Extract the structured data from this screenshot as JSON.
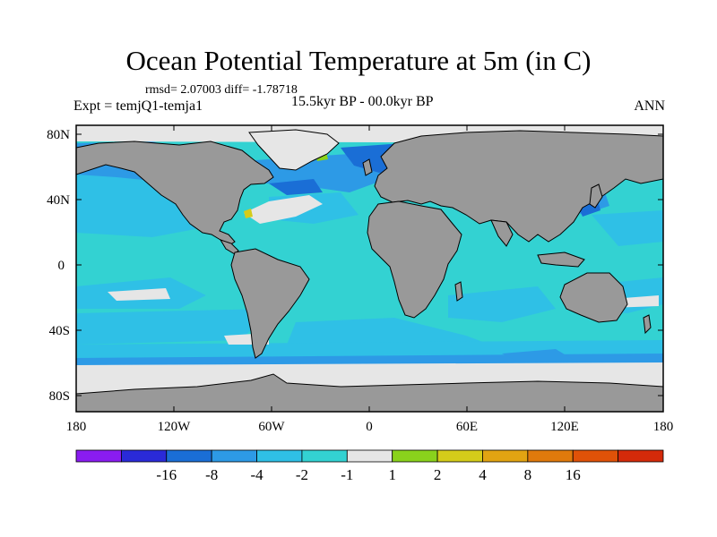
{
  "title": "Ocean Potential Temperature at 5m (in C)",
  "stats": "rmsd= 2.07003 diff= -1.78718",
  "experiment": "Expt = temjQ1-temja1",
  "period": "15.5kyr BP - 00.0kyr BP",
  "season": "ANN",
  "lat_labels": [
    "80N",
    "40N",
    "0",
    "40S",
    "80S"
  ],
  "lon_labels": [
    "180",
    "120W",
    "60W",
    "0",
    "60E",
    "120E",
    "180"
  ],
  "colorbar": {
    "colors": [
      "#8a1cf0",
      "#2a2ad8",
      "#1a6ed6",
      "#2d9ae6",
      "#2fc0e6",
      "#33d2d2",
      "#e6e6e6",
      "#8ad21c",
      "#d4cc1a",
      "#e2a412",
      "#e07a0c",
      "#e05208",
      "#d42a0a"
    ],
    "labels": [
      "-16",
      "-8",
      "-4",
      "-2",
      "-1",
      "1",
      "2",
      "4",
      "8",
      "16"
    ]
  },
  "colors": {
    "land": "#999999",
    "sea_ice": "#e6e6e6",
    "ocean_base": "#33d2d2",
    "ocean_mid": "#2fc0e6",
    "ocean_cold": "#2d9ae6",
    "ocean_colder": "#1a6ed6",
    "warm_spot": "#8ad21c"
  }
}
